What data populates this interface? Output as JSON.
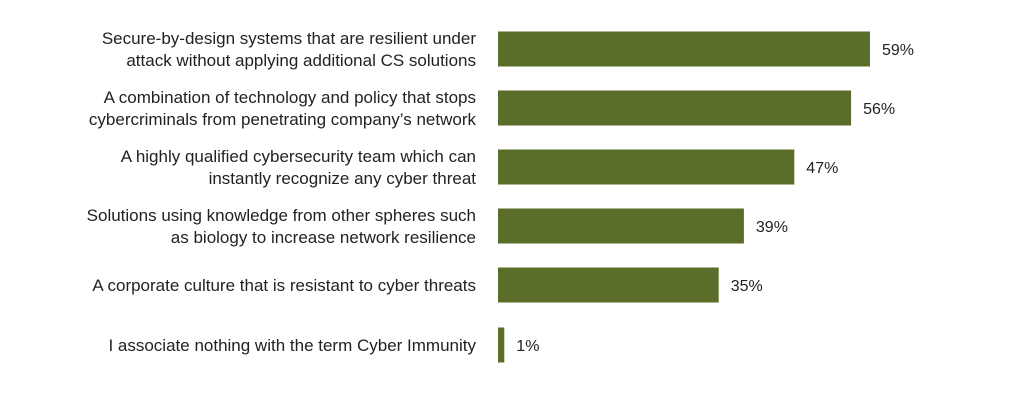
{
  "chart_data": {
    "type": "bar",
    "orientation": "horizontal",
    "categories": [
      [
        "Secure-by-design systems that are resilient under",
        "attack without applying additional CS solutions"
      ],
      [
        "A combination of technology and policy that stops",
        "cybercriminals from penetrating company’s network"
      ],
      [
        "A highly qualified cybersecurity team which can",
        "instantly recognize any cyber threat"
      ],
      [
        "Solutions using knowledge from other spheres such",
        "as biology to increase network resilience"
      ],
      [
        "A corporate culture that is resistant to cyber threats"
      ],
      [
        "I associate nothing with the term Cyber Immunity"
      ]
    ],
    "values": [
      59,
      56,
      47,
      39,
      35,
      1
    ],
    "value_labels": [
      "59%",
      "56%",
      "47%",
      "39%",
      "35%",
      "1%"
    ],
    "unit": "%",
    "xlim": [
      0,
      59
    ],
    "grid": false,
    "legend": "none",
    "bar_color": "#5a6e2a"
  }
}
